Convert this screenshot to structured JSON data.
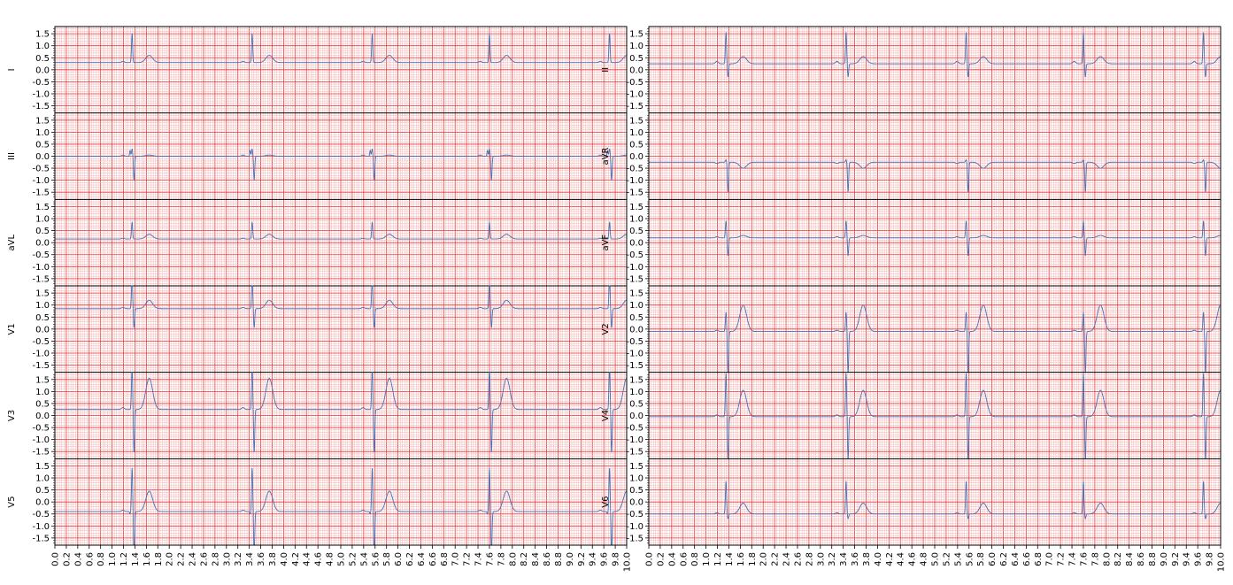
{
  "chart_data": {
    "type": "line",
    "layout": "2 columns x 6 rows, shared time axis per column",
    "grid": true,
    "grid_colors": {
      "major": "#e33a3a",
      "minor": "#f3a1a1",
      "trace": "#4a6fb3"
    },
    "x_unit": "s",
    "xlim": [
      0.0,
      10.0
    ],
    "x_ticks": [
      "0.0",
      "0.2",
      "0.4",
      "0.6",
      "0.8",
      "1.0",
      "1.2",
      "1.4",
      "1.6",
      "1.8",
      "2.0",
      "2.2",
      "2.4",
      "2.6",
      "2.8",
      "3.0",
      "3.2",
      "3.4",
      "3.6",
      "3.8",
      "4.0",
      "4.2",
      "4.4",
      "4.6",
      "4.8",
      "5.0",
      "5.2",
      "5.4",
      "5.6",
      "5.8",
      "6.0",
      "6.2",
      "6.4",
      "6.6",
      "6.8",
      "7.0",
      "7.2",
      "7.4",
      "7.6",
      "7.8",
      "8.0",
      "8.2",
      "8.4",
      "8.6",
      "8.8",
      "9.0",
      "9.2",
      "9.4",
      "9.6",
      "9.8",
      "10.0"
    ],
    "ylim": [
      -1.8,
      1.8
    ],
    "y_ticks": [
      "1.5",
      "1.0",
      "0.5",
      "0.0",
      "-0.5",
      "-1.0",
      "-1.5"
    ],
    "beats_s": [
      1.35,
      3.45,
      5.55,
      7.6,
      9.7
    ],
    "columns": [
      {
        "leads": [
          {
            "name": "I",
            "baseline": 0.3,
            "p": 0.05,
            "q": 0.0,
            "r": 1.2,
            "s": 0.0,
            "t": 0.3
          },
          {
            "name": "III",
            "baseline": 0.0,
            "p": 0.05,
            "q": 0.25,
            "r": 0.3,
            "s": -1.0,
            "t": 0.05
          },
          {
            "name": "aVL",
            "baseline": 0.15,
            "p": 0.03,
            "q": 0.0,
            "r": 0.7,
            "s": 0.0,
            "t": 0.2
          },
          {
            "name": "V1",
            "baseline": 0.85,
            "p": 0.05,
            "q": 0.0,
            "r": 1.3,
            "s": -0.8,
            "t": 0.35
          },
          {
            "name": "V3",
            "baseline": 0.25,
            "p": 0.08,
            "q": 0.0,
            "r": 1.8,
            "s": -1.8,
            "t": 1.3
          },
          {
            "name": "V5",
            "baseline": -0.4,
            "p": 0.06,
            "q": -0.1,
            "r": 1.8,
            "s": -1.8,
            "t": 0.85
          }
        ]
      },
      {
        "leads": [
          {
            "name": "II",
            "baseline": 0.25,
            "p": 0.1,
            "q": 0.0,
            "r": 1.3,
            "s": -0.55,
            "t": 0.3
          },
          {
            "name": "aVR",
            "baseline": -0.25,
            "p": -0.05,
            "q": 0.0,
            "r": 0.1,
            "s": -1.25,
            "t": -0.25
          },
          {
            "name": "aVF",
            "baseline": 0.2,
            "p": 0.05,
            "q": 0.0,
            "r": 0.7,
            "s": -0.75,
            "t": 0.1
          },
          {
            "name": "V2",
            "baseline": -0.1,
            "p": 0.05,
            "q": 0.0,
            "r": 0.8,
            "s": -1.8,
            "t": 1.1
          },
          {
            "name": "V4",
            "baseline": -0.05,
            "p": 0.08,
            "q": 0.0,
            "r": 1.8,
            "s": -1.8,
            "t": 1.1
          },
          {
            "name": "V6",
            "baseline": -0.5,
            "p": 0.05,
            "q": 0.0,
            "r": 1.35,
            "s": -0.2,
            "t": 0.45
          }
        ]
      }
    ]
  }
}
